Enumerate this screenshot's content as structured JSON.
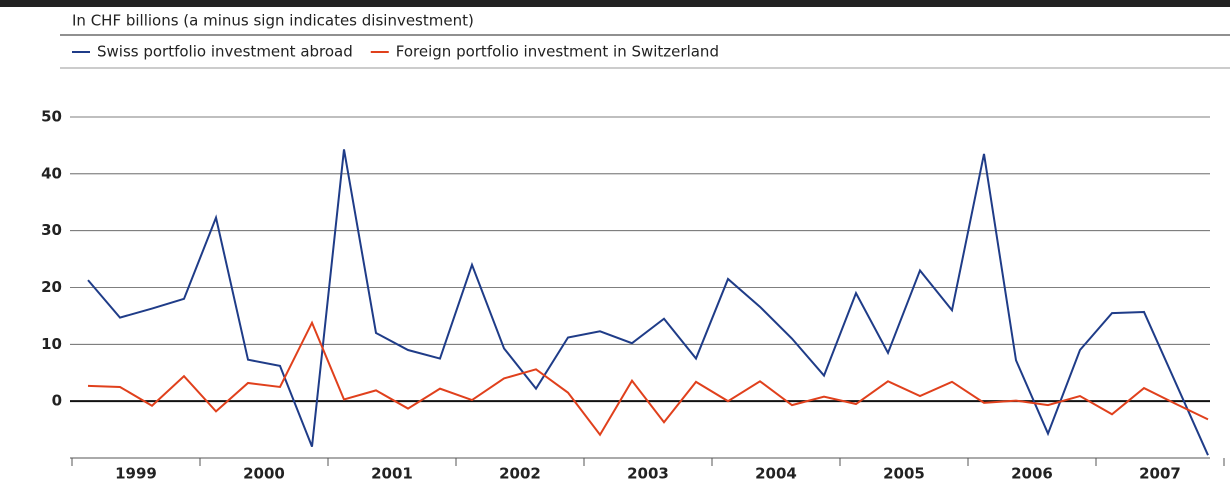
{
  "chart_data": {
    "type": "line",
    "subtitle": "In CHF billions (a minus sign indicates disinvestment)",
    "categories": [
      "1999",
      null,
      null,
      null,
      "2000",
      null,
      null,
      null,
      "2001",
      null,
      null,
      null,
      "2002",
      null,
      null,
      null,
      "2003",
      null,
      null,
      null,
      "2004",
      null,
      null,
      null,
      "2005",
      null,
      null,
      null,
      "2006",
      null,
      null,
      null,
      "2007",
      null,
      null,
      null
    ],
    "series": [
      {
        "name": "Swiss portfolio investment abroad",
        "color": "#1f3c88",
        "values": [
          21.3,
          14.7,
          16.3,
          18,
          32.3,
          7.3,
          6.2,
          -8,
          44.3,
          12,
          9,
          7.5,
          24,
          9.3,
          2.2,
          11.2,
          12.3,
          10.2,
          14.5,
          7.5,
          21.5,
          16.6,
          11,
          4.5,
          19,
          8.5,
          23,
          16,
          43.5,
          7.2,
          -5.7,
          9,
          15.5,
          15.7,
          3.1,
          -9.5
        ]
      },
      {
        "name": "Foreign portfolio investment in Switzerland",
        "color": "#e0401c",
        "values": [
          2.7,
          2.5,
          -0.8,
          4.4,
          -1.8,
          3.2,
          2.5,
          13.8,
          0.3,
          1.9,
          -1.3,
          2.2,
          0.2,
          4,
          5.6,
          1.5,
          -5.9,
          3.6,
          -3.7,
          3.4,
          0,
          3.5,
          -0.7,
          0.8,
          -0.5,
          3.5,
          0.9,
          3.4,
          -0.3,
          0.1,
          -0.7,
          0.9,
          -2.3,
          2.3,
          -0.5,
          -3.2
        ]
      }
    ],
    "ylim": [
      -10,
      50
    ],
    "yticks": [
      0,
      10,
      20,
      30,
      40,
      50
    ],
    "grid": true
  }
}
